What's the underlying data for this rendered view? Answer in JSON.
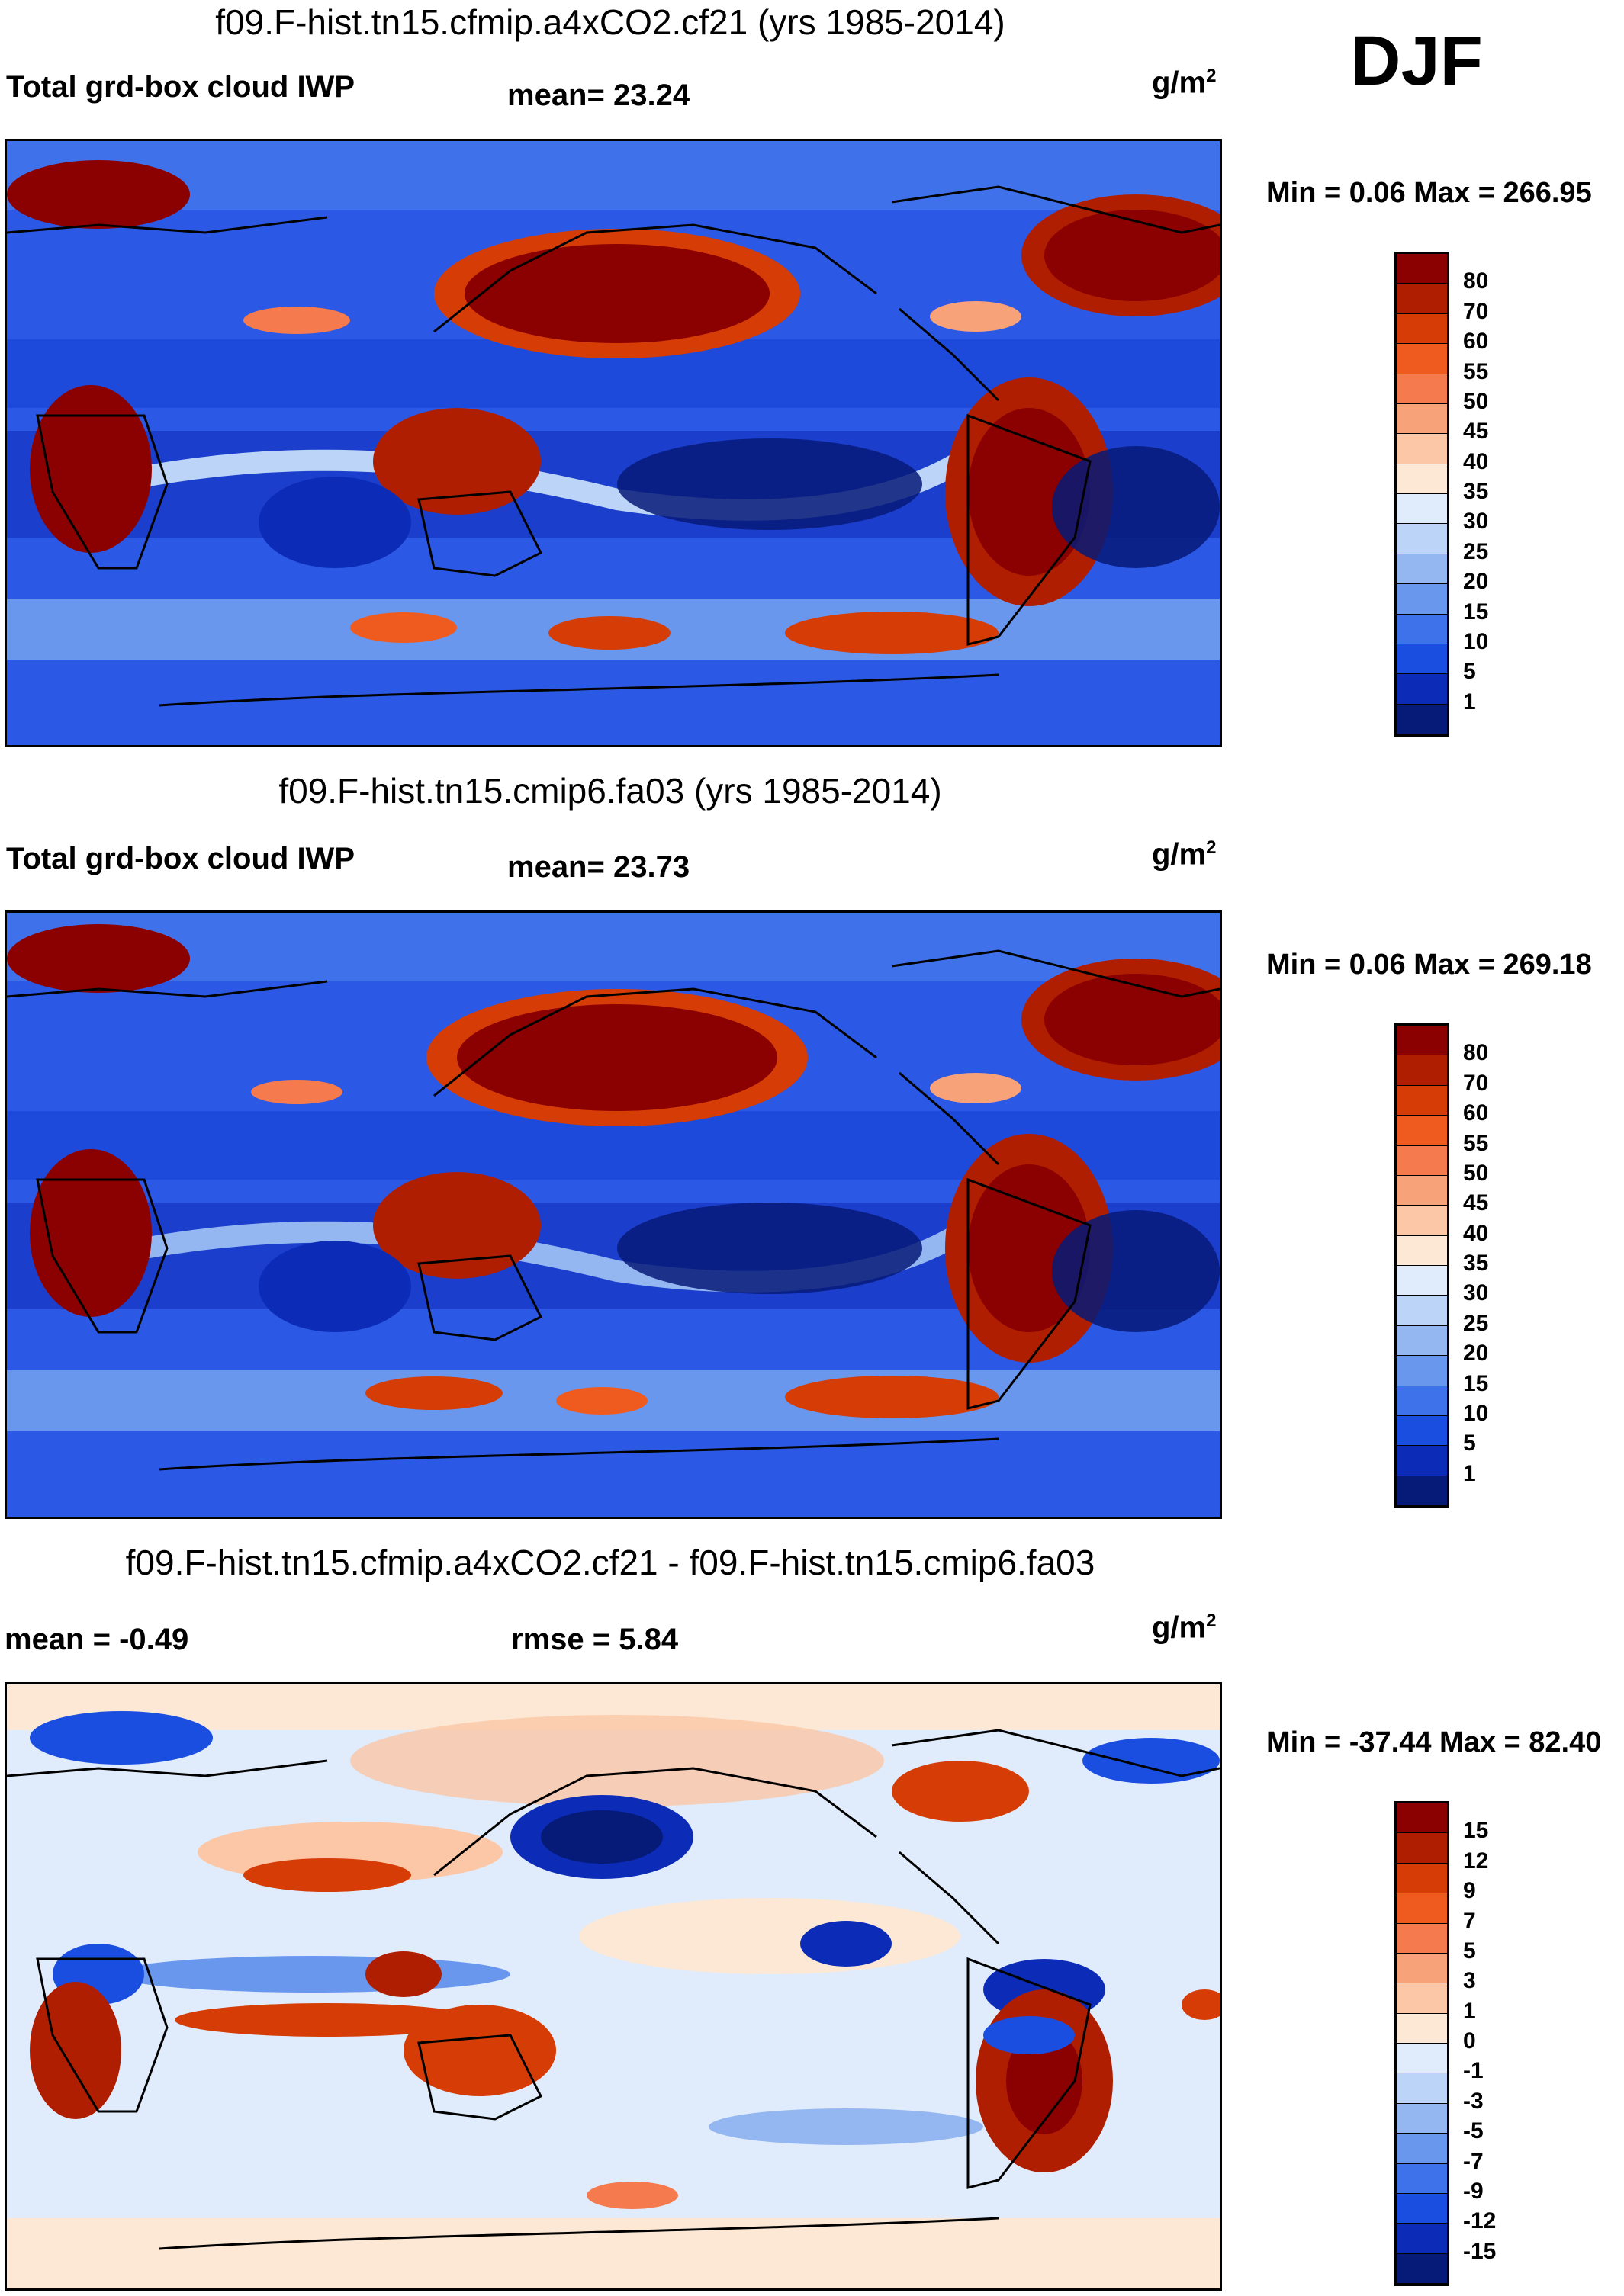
{
  "season": "DJF",
  "panels": [
    {
      "title": "f09.F-hist.tn15.cfmip.a4xCO2.cf21 (yrs 1985-2014)",
      "left_label": "Total grd-box cloud IWP",
      "center_label": "mean=  23.24",
      "units": "g/m",
      "units_sup": "2",
      "minmax": "Min =   0.06 Max = 266.95",
      "colorbar": {
        "labels": [
          "80",
          "70",
          "60",
          "55",
          "50",
          "45",
          "40",
          "35",
          "30",
          "25",
          "20",
          "15",
          "10",
          "5",
          "1"
        ],
        "colors": [
          "#8b0000",
          "#b01e02",
          "#d53c06",
          "#ef5a1e",
          "#f57b4e",
          "#f8a27a",
          "#fbc7a6",
          "#fde8d5",
          "#e0ecfb",
          "#bcd4f7",
          "#94b7f2",
          "#6a97ee",
          "#3e72ea",
          "#1a4ee0",
          "#0c2cb8",
          "#061a78"
        ]
      }
    },
    {
      "title": "f09.F-hist.tn15.cmip6.fa03 (yrs 1985-2014)",
      "left_label": "Total grd-box cloud IWP",
      "center_label": "mean=  23.73",
      "units": "g/m",
      "units_sup": "2",
      "minmax": "Min =   0.06 Max = 269.18",
      "colorbar": {
        "labels": [
          "80",
          "70",
          "60",
          "55",
          "50",
          "45",
          "40",
          "35",
          "30",
          "25",
          "20",
          "15",
          "10",
          "5",
          "1"
        ],
        "colors": [
          "#8b0000",
          "#b01e02",
          "#d53c06",
          "#ef5a1e",
          "#f57b4e",
          "#f8a27a",
          "#fbc7a6",
          "#fde8d5",
          "#e0ecfb",
          "#bcd4f7",
          "#94b7f2",
          "#6a97ee",
          "#3e72ea",
          "#1a4ee0",
          "#0c2cb8",
          "#061a78"
        ]
      }
    },
    {
      "title": "f09.F-hist.tn15.cfmip.a4xCO2.cf21 - f09.F-hist.tn15.cmip6.fa03",
      "left_label": "mean =  -0.49",
      "center_label": "rmse =    5.84",
      "units": "g/m",
      "units_sup": "2",
      "minmax": "Min = -37.44 Max =  82.40",
      "colorbar": {
        "labels": [
          "15",
          "12",
          "9",
          "7",
          "5",
          "3",
          "1",
          "0",
          "-1",
          "-3",
          "-5",
          "-7",
          "-9",
          "-12",
          "-15"
        ],
        "colors": [
          "#8b0000",
          "#b01e02",
          "#d53c06",
          "#ef5a1e",
          "#f57b4e",
          "#f8a27a",
          "#fbc7a6",
          "#fde8d5",
          "#e0ecfb",
          "#bcd4f7",
          "#94b7f2",
          "#6a97ee",
          "#3e72ea",
          "#1a4ee0",
          "#0c2cb8",
          "#061a78"
        ]
      }
    }
  ]
}
